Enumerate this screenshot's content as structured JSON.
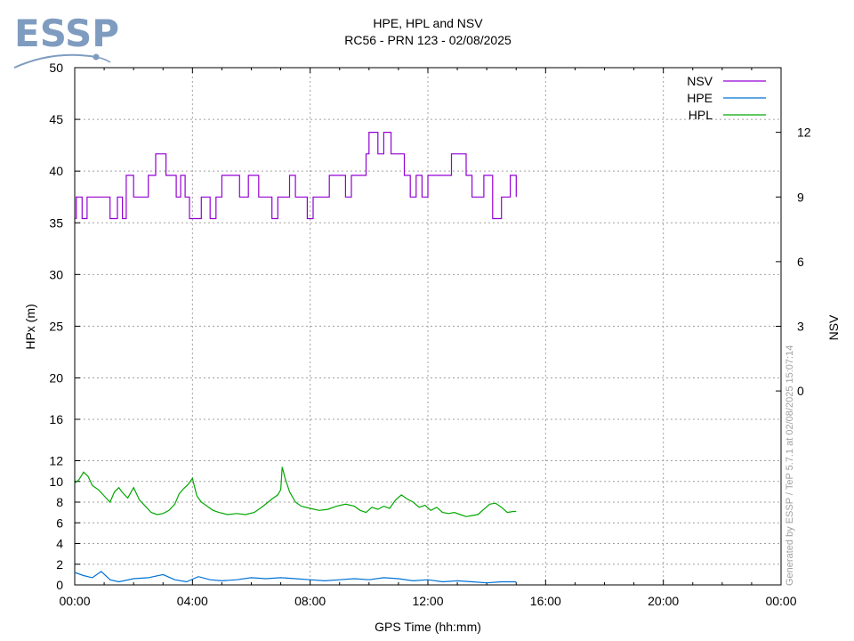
{
  "logo": {
    "text": "ESSP",
    "color": "#7f9cc0"
  },
  "watermark": "Generated by ESSP / TeP 5.7.1 at 02/08/2025 15:07:14",
  "chart_data": {
    "type": "line",
    "title": "HPE, HPL and NSV",
    "subtitle": "RC56 - PRN 123 - 02/08/2025",
    "xlabel": "GPS Time (hh:mm)",
    "ylabel": "HPx (m)",
    "y2label": "NSV",
    "x_ticks": [
      "00:00",
      "04:00",
      "08:00",
      "12:00",
      "16:00",
      "20:00",
      "00:00"
    ],
    "x_range_hours": [
      0,
      24
    ],
    "y_ticks": [
      0,
      2,
      4,
      6,
      8,
      10,
      12,
      16,
      20,
      25,
      30,
      35,
      40,
      45,
      50
    ],
    "y2_ticks": [
      0,
      3,
      6,
      9,
      12
    ],
    "y_axis_scale": "piecewise linear: 0-12 step 2, 12-20 step 4, 20-50 step 5",
    "y2_range": [
      -9,
      15
    ],
    "grid": true,
    "legend_position": "top-right",
    "colors": {
      "NSV": "#9400d3",
      "HPE": "#0072d6",
      "HPL": "#00a800"
    },
    "series": [
      {
        "name": "NSV",
        "step": true,
        "x": [
          0.0,
          0.05,
          0.25,
          0.42,
          1.2,
          1.45,
          1.62,
          1.75,
          2.0,
          2.5,
          2.75,
          3.1,
          3.45,
          3.6,
          3.75,
          3.9,
          4.3,
          4.6,
          4.8,
          5.0,
          5.6,
          5.9,
          6.25,
          6.7,
          6.9,
          7.3,
          7.5,
          7.9,
          8.1,
          8.65,
          9.2,
          9.4,
          9.9,
          10.0,
          10.3,
          10.5,
          10.75,
          11.2,
          11.4,
          11.6,
          11.8,
          12.0,
          12.3,
          12.8,
          13.3,
          13.5,
          13.9,
          14.2,
          14.5,
          14.8,
          15.0
        ],
        "values": [
          8,
          9,
          8,
          9,
          8,
          9,
          8,
          10,
          9,
          10,
          11,
          10,
          9,
          10,
          9,
          8,
          9,
          8,
          9,
          10,
          9,
          10,
          9,
          8,
          9,
          10,
          9,
          8,
          9,
          10,
          9,
          10,
          11,
          12,
          11,
          12,
          11,
          10,
          9,
          10,
          9,
          10,
          10,
          11,
          10,
          9,
          10,
          8,
          9,
          10,
          9
        ]
      },
      {
        "name": "HPE",
        "x": [
          0.0,
          0.3,
          0.6,
          0.9,
          1.2,
          1.5,
          2.0,
          2.5,
          3.0,
          3.4,
          3.8,
          4.2,
          4.6,
          5.0,
          5.5,
          6.0,
          6.5,
          7.0,
          7.5,
          8.0,
          8.5,
          9.0,
          9.5,
          10.0,
          10.5,
          11.0,
          11.5,
          12.0,
          12.5,
          13.0,
          13.5,
          14.0,
          14.5,
          15.0
        ],
        "values": [
          1.2,
          0.9,
          0.7,
          1.3,
          0.5,
          0.3,
          0.6,
          0.7,
          1.0,
          0.5,
          0.3,
          0.8,
          0.5,
          0.4,
          0.5,
          0.7,
          0.6,
          0.7,
          0.6,
          0.5,
          0.4,
          0.5,
          0.6,
          0.5,
          0.7,
          0.6,
          0.4,
          0.5,
          0.3,
          0.4,
          0.3,
          0.2,
          0.3,
          0.3
        ]
      },
      {
        "name": "HPL",
        "x": [
          0.0,
          0.15,
          0.3,
          0.45,
          0.6,
          0.8,
          1.0,
          1.2,
          1.35,
          1.5,
          1.6,
          1.8,
          2.0,
          2.2,
          2.4,
          2.6,
          2.8,
          3.0,
          3.2,
          3.4,
          3.55,
          3.7,
          3.85,
          4.0,
          4.15,
          4.3,
          4.5,
          4.7,
          4.9,
          5.2,
          5.5,
          5.8,
          6.1,
          6.4,
          6.7,
          6.9,
          7.0,
          7.05,
          7.15,
          7.3,
          7.5,
          7.7,
          8.0,
          8.3,
          8.6,
          8.9,
          9.2,
          9.5,
          9.7,
          9.9,
          10.1,
          10.3,
          10.5,
          10.7,
          10.9,
          11.1,
          11.3,
          11.5,
          11.7,
          11.9,
          12.1,
          12.3,
          12.5,
          12.7,
          12.9,
          13.1,
          13.3,
          13.5,
          13.7,
          13.9,
          14.1,
          14.3,
          14.5,
          14.7,
          14.9,
          15.0
        ],
        "values": [
          9.8,
          10.2,
          10.9,
          10.5,
          9.6,
          9.2,
          8.6,
          8.0,
          9.0,
          9.4,
          9.0,
          8.4,
          9.4,
          8.2,
          7.6,
          7.0,
          6.8,
          6.9,
          7.2,
          7.8,
          8.8,
          9.3,
          9.7,
          10.3,
          8.6,
          8.0,
          7.6,
          7.2,
          7.0,
          6.8,
          6.9,
          6.8,
          7.0,
          7.6,
          8.3,
          8.7,
          9.2,
          11.4,
          10.3,
          9.0,
          8.0,
          7.6,
          7.4,
          7.2,
          7.3,
          7.6,
          7.8,
          7.6,
          7.2,
          7.0,
          7.5,
          7.3,
          7.6,
          7.4,
          8.2,
          8.7,
          8.3,
          8.0,
          7.5,
          7.7,
          7.2,
          7.5,
          7.0,
          6.9,
          7.0,
          6.8,
          6.6,
          6.7,
          6.8,
          7.3,
          7.8,
          7.9,
          7.5,
          7.0,
          7.1,
          7.1
        ]
      }
    ]
  }
}
